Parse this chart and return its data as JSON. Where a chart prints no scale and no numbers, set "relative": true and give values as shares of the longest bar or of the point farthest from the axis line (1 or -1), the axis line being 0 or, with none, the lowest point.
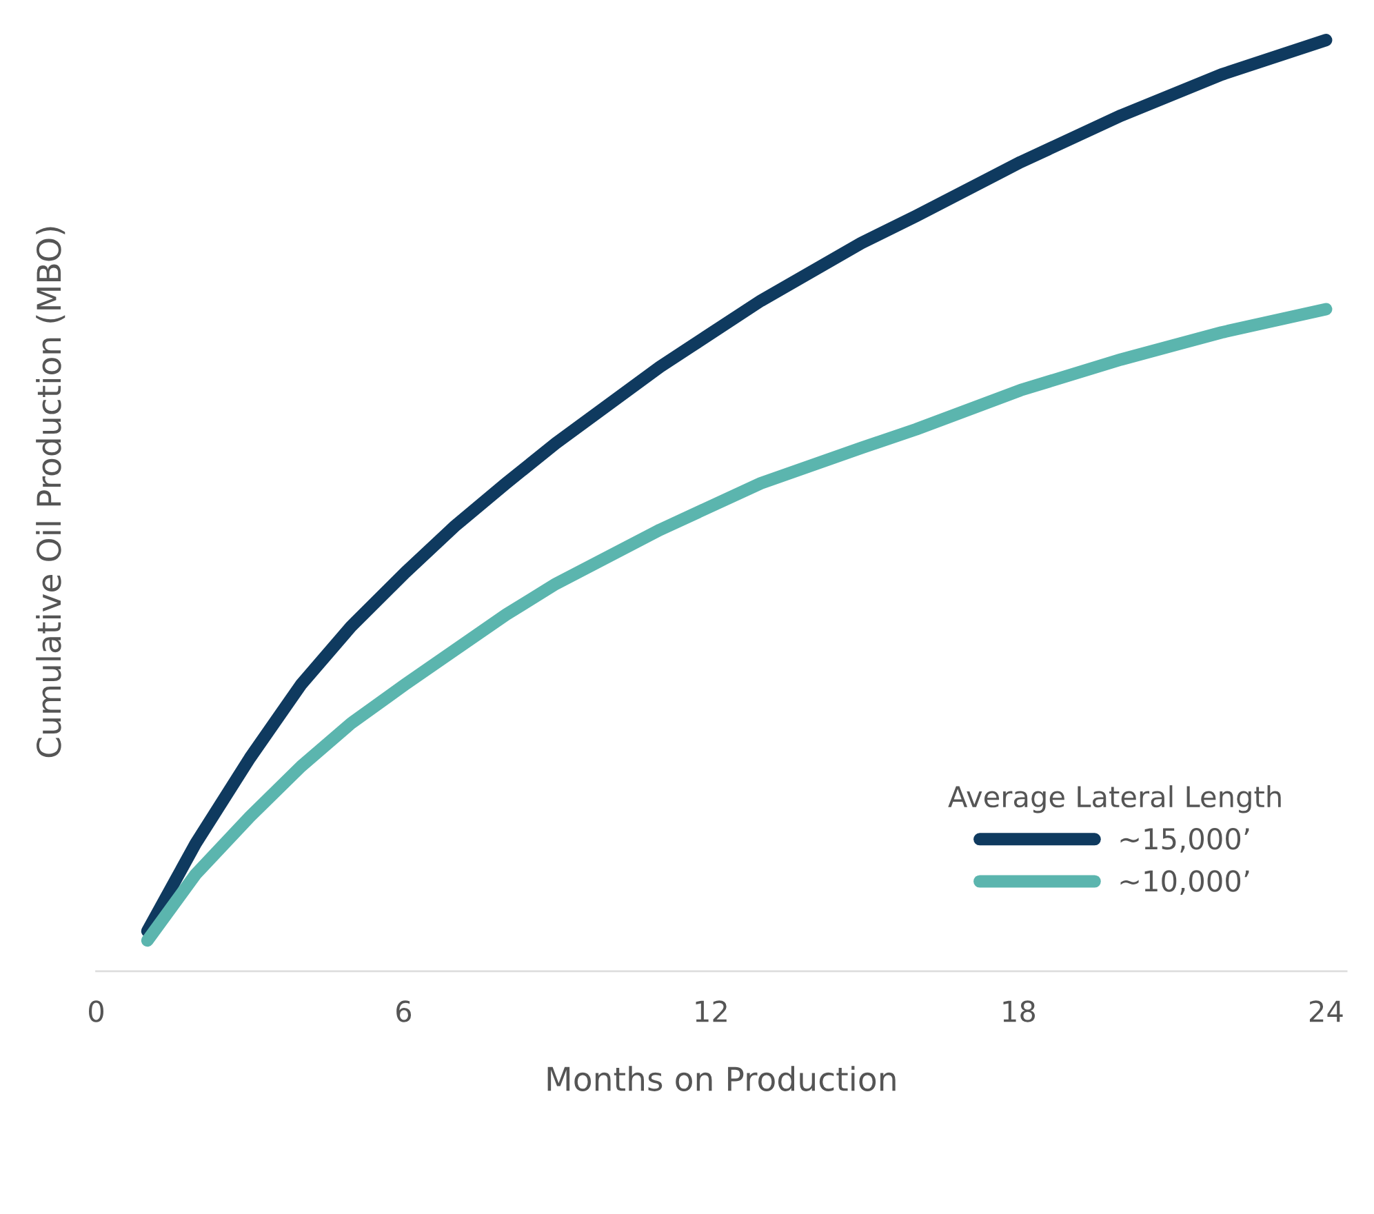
{
  "chart_data": {
    "type": "line",
    "relative": true,
    "xlabel": "Months on Production",
    "ylabel": "Cumulative Oil Production (MBO)",
    "legend_title": "Average Lateral Length",
    "legend": "bottom right",
    "grid": false,
    "marker": "none",
    "line_style": "solid",
    "x": [
      1,
      1.94,
      3,
      4,
      4.97,
      6.03,
      7,
      8,
      8.97,
      11,
      12.97,
      14.93,
      16,
      18.04,
      20,
      21.96,
      24
    ],
    "xlim": [
      0,
      24.4
    ],
    "xticks": [
      0,
      6,
      12,
      18,
      24
    ],
    "series": [
      {
        "name": "~15,000’",
        "color": "#0f3a5f",
        "values": [
          0.043,
          0.137,
          0.229,
          0.308,
          0.37,
          0.428,
          0.478,
          0.524,
          0.567,
          0.649,
          0.72,
          0.782,
          0.811,
          0.869,
          0.919,
          0.963,
          1.0
        ]
      },
      {
        "name": "~10,000’",
        "color": "#5bb5ae",
        "values": [
          0.033,
          0.104,
          0.166,
          0.22,
          0.266,
          0.308,
          0.345,
          0.383,
          0.416,
          0.474,
          0.524,
          0.562,
          0.582,
          0.624,
          0.657,
          0.686,
          0.711
        ]
      }
    ]
  }
}
